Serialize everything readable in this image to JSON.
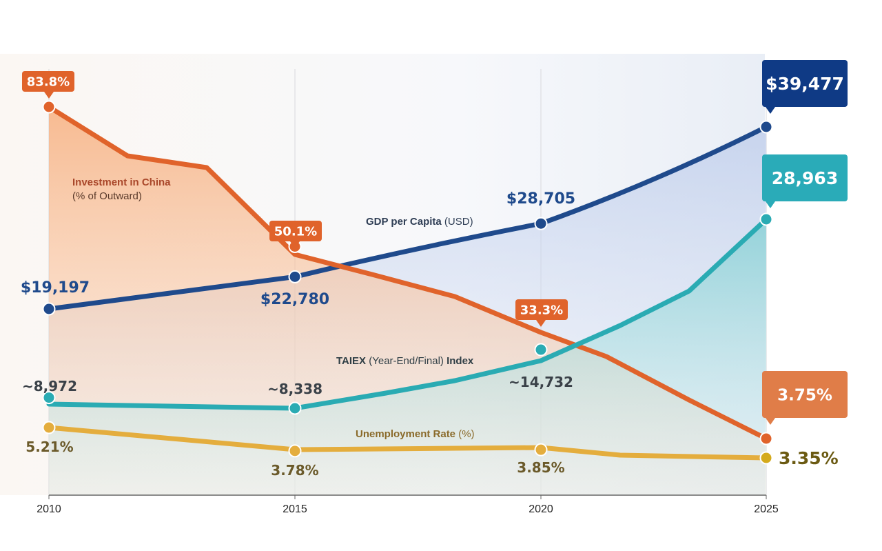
{
  "chart_data": {
    "type": "line",
    "title": "",
    "xlabel": "",
    "ylabel": "",
    "x": [
      "2010",
      "2015",
      "2020",
      "2025"
    ],
    "x_ticks": [
      "2010",
      "2015",
      "2020",
      "2025"
    ],
    "grid": "vertical lines at each year",
    "legend": "inline series labels",
    "series": [
      {
        "id": "investment",
        "name": "Investment in China",
        "name_suffix": "(% of Outward)",
        "color": "#e0632b",
        "fill": "#f8b98f",
        "values": [
          83.8,
          50.1,
          33.3,
          3.75
        ],
        "labels": [
          "83.8%",
          "50.1%",
          "33.3%",
          "3.75%"
        ],
        "label_style": "callout"
      },
      {
        "id": "gdp",
        "name": "GDP per Capita",
        "name_suffix": "(USD)",
        "color": "#1f4a8c",
        "fill": "#c9d6ef",
        "values": [
          19197,
          22780,
          28705,
          39477
        ],
        "labels": [
          "$19,197",
          "$22,780",
          "$28,705",
          "$39,477"
        ],
        "label_style": "text",
        "final_callout_color": "#0f3a85"
      },
      {
        "id": "taiex",
        "name": "TAIEX",
        "name_suffix": "(Year-End/Final)",
        "name_tail": "Index",
        "color": "#2aabb3",
        "fill": "#9fd9db",
        "values": [
          8972,
          8338,
          14732,
          28963
        ],
        "labels": [
          "~8,972",
          "~8,338",
          "~14,732",
          "28,963"
        ],
        "label_style": "text",
        "final_callout_color": "#2aabb8"
      },
      {
        "id": "unemployment",
        "name": "Unemployment Rate",
        "name_suffix": "(%)",
        "color": "#e4ad3d",
        "fill": "none",
        "values": [
          5.21,
          3.78,
          3.85,
          3.35
        ],
        "labels": [
          "5.21%",
          "3.78%",
          "3.85%",
          "3.35%"
        ],
        "label_style": "text",
        "label_color": "#6b5a2a",
        "final_label_color": "#6b5a12"
      }
    ]
  }
}
